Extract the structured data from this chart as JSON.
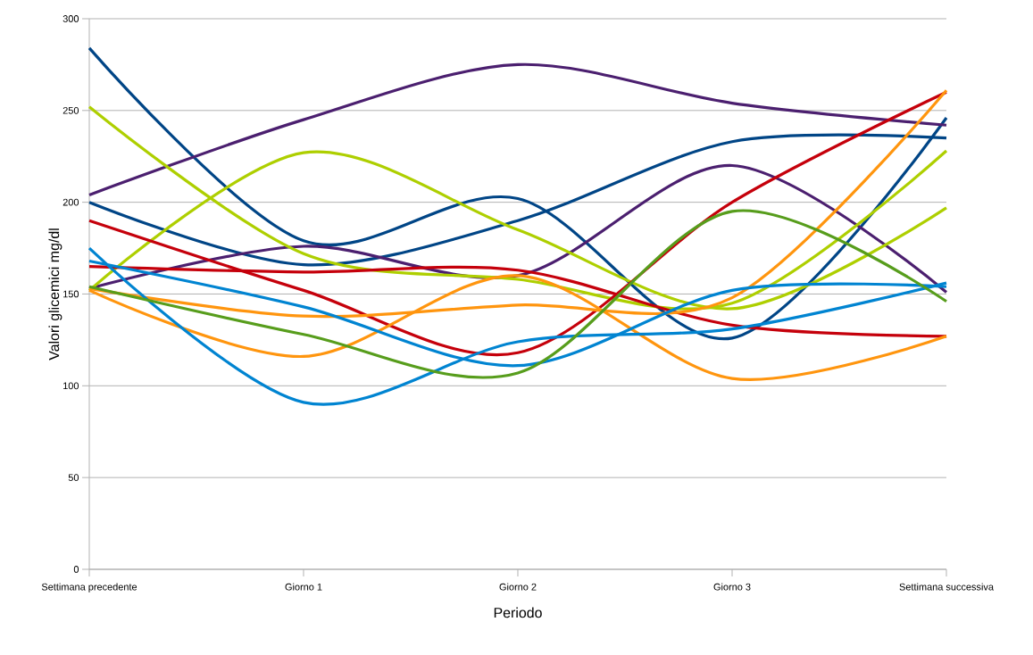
{
  "chart_data": {
    "type": "line",
    "xlabel": "Periodo",
    "ylabel": "Valori glicemici mg/dl",
    "categories": [
      "Settimana precedente",
      "Giorno 1",
      "Giorno 2",
      "Giorno 3",
      "Settimana successiva"
    ],
    "series": [
      {
        "color": "#004586",
        "values": [
          284,
          179,
          202,
          126,
          246
        ]
      },
      {
        "color": "#004586",
        "values": [
          200,
          166,
          190,
          233,
          235
        ]
      },
      {
        "color": "#4b1f6f",
        "values": [
          204,
          245,
          275,
          254,
          242
        ]
      },
      {
        "color": "#4b1f6f",
        "values": [
          153,
          176,
          160,
          220,
          151
        ]
      },
      {
        "color": "#aecf00",
        "values": [
          252,
          172,
          158,
          145,
          228
        ]
      },
      {
        "color": "#aecf00",
        "values": [
          152,
          227,
          185,
          142,
          197
        ]
      },
      {
        "color": "#c5000b",
        "values": [
          190,
          152,
          118,
          200,
          260
        ]
      },
      {
        "color": "#c5000b",
        "values": [
          165,
          162,
          163,
          133,
          127
        ]
      },
      {
        "color": "#ff950e",
        "values": [
          153,
          138,
          144,
          148,
          261
        ]
      },
      {
        "color": "#ff950e",
        "values": [
          152,
          116,
          160,
          104,
          127
        ]
      },
      {
        "color": "#0084d1",
        "values": [
          175,
          91,
          124,
          131,
          156
        ]
      },
      {
        "color": "#0084d1",
        "values": [
          168,
          143,
          111,
          152,
          154
        ]
      },
      {
        "color": "#579d1c",
        "values": [
          154,
          128,
          107,
          195,
          146
        ]
      }
    ],
    "ylim": [
      0,
      300
    ],
    "yticks": [
      0,
      50,
      100,
      150,
      200,
      250,
      300
    ],
    "grid": "y"
  }
}
